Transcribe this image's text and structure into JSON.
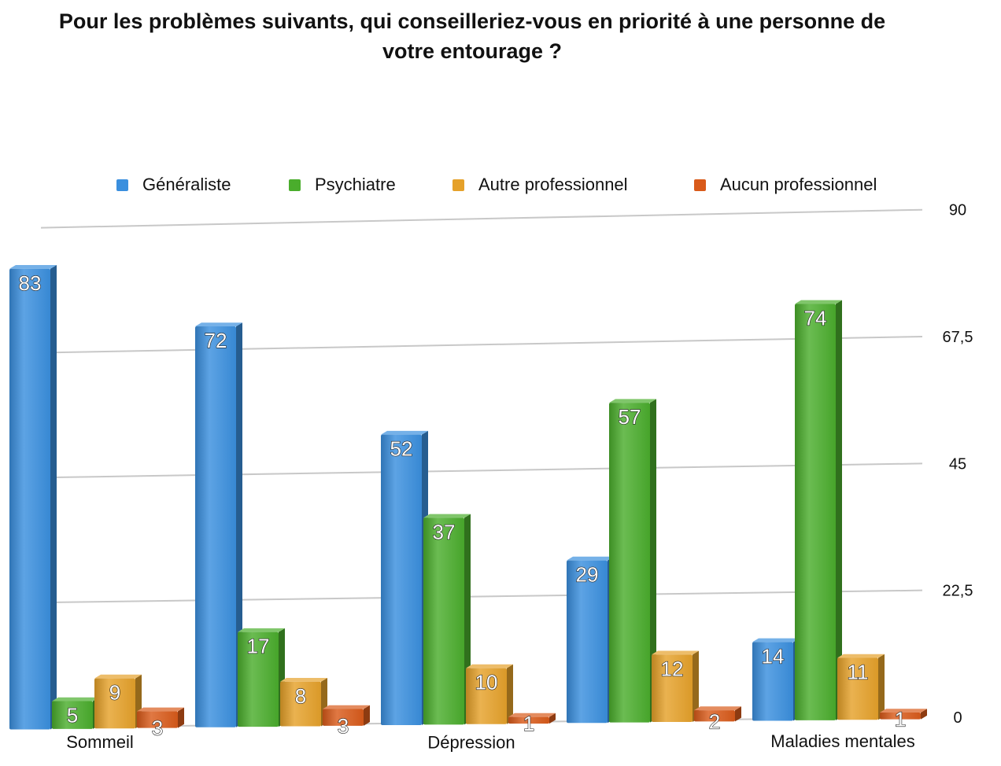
{
  "chart_data": {
    "type": "bar",
    "title": "Pour les problèmes suivants, qui conseilleriez-vous en priorité à une personne de votre entourage ?",
    "title_line1": "Pour les problèmes suivants, qui conseilleriez-vous en priorité à une personne de",
    "title_line2": "votre entourage ?",
    "categories": [
      "Sommeil",
      "",
      "Dépression",
      "",
      "Maladies mentales"
    ],
    "series": [
      {
        "name": "Généraliste",
        "color": "#3a8fde",
        "values": [
          83,
          72,
          52,
          29,
          14
        ]
      },
      {
        "name": "Psychiatre",
        "color": "#4aad2c",
        "values": [
          5,
          17,
          37,
          57,
          74
        ]
      },
      {
        "name": "Autre professionnel",
        "color": "#e5a12a",
        "values": [
          9,
          8,
          10,
          12,
          11
        ]
      },
      {
        "name": "Aucun professionnel",
        "color": "#d95a1a",
        "values": [
          3,
          3,
          1,
          2,
          1
        ]
      }
    ],
    "yticks": [
      "0",
      "22,5",
      "45",
      "67,5",
      "90"
    ],
    "ytick_values": [
      0,
      22.5,
      45,
      67.5,
      90
    ],
    "ylim": [
      0,
      90
    ],
    "legend_position": "top",
    "grid": true
  }
}
